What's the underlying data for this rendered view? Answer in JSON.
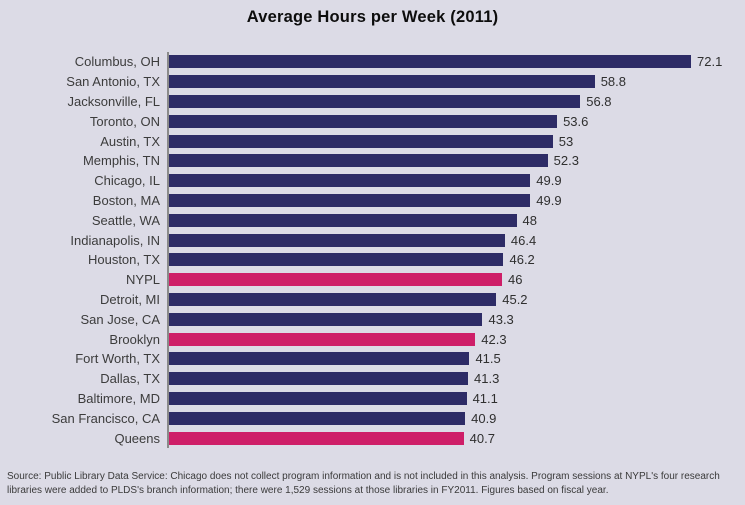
{
  "title": "Average Hours per Week (2011)",
  "colors": {
    "background": "#dcdbe6",
    "bar": "#2d2b66",
    "highlight": "#ce1e68",
    "axis_line": "#8a8a8a",
    "text": "#3c3c3c"
  },
  "chart_data": {
    "type": "bar",
    "orientation": "horizontal",
    "title": "Average Hours per Week (2011)",
    "categories": [
      "Columbus, OH",
      "San Antonio, TX",
      "Jacksonville, FL",
      "Toronto, ON",
      "Austin, TX",
      "Memphis, TN",
      "Chicago, IL",
      "Boston, MA",
      "Seattle, WA",
      "Indianapolis, IN",
      "Houston, TX",
      "NYPL",
      "Detroit, MI",
      "San Jose, CA",
      "Brooklyn",
      "Fort Worth, TX",
      "Dallas, TX",
      "Baltimore, MD",
      "San Francisco, CA",
      "Queens"
    ],
    "values": [
      72.1,
      58.8,
      56.8,
      53.6,
      53,
      52.3,
      49.9,
      49.9,
      48,
      46.4,
      46.2,
      46,
      45.2,
      43.3,
      42.3,
      41.5,
      41.3,
      41.1,
      40.9,
      40.7
    ],
    "highlighted_categories": [
      "NYPL",
      "Brooklyn",
      "Queens"
    ],
    "value_labels_shown": true,
    "xlim": [
      0,
      78
    ],
    "grid": false,
    "legend": false
  },
  "source_note": "Source: Public Library Data Service: Chicago does not collect program information and is not included in this analysis. Program sessions at NYPL's four research libraries were added to PLDS's branch information; there were 1,529 sessions at those libraries in FY2011. Figures based on fiscal year."
}
